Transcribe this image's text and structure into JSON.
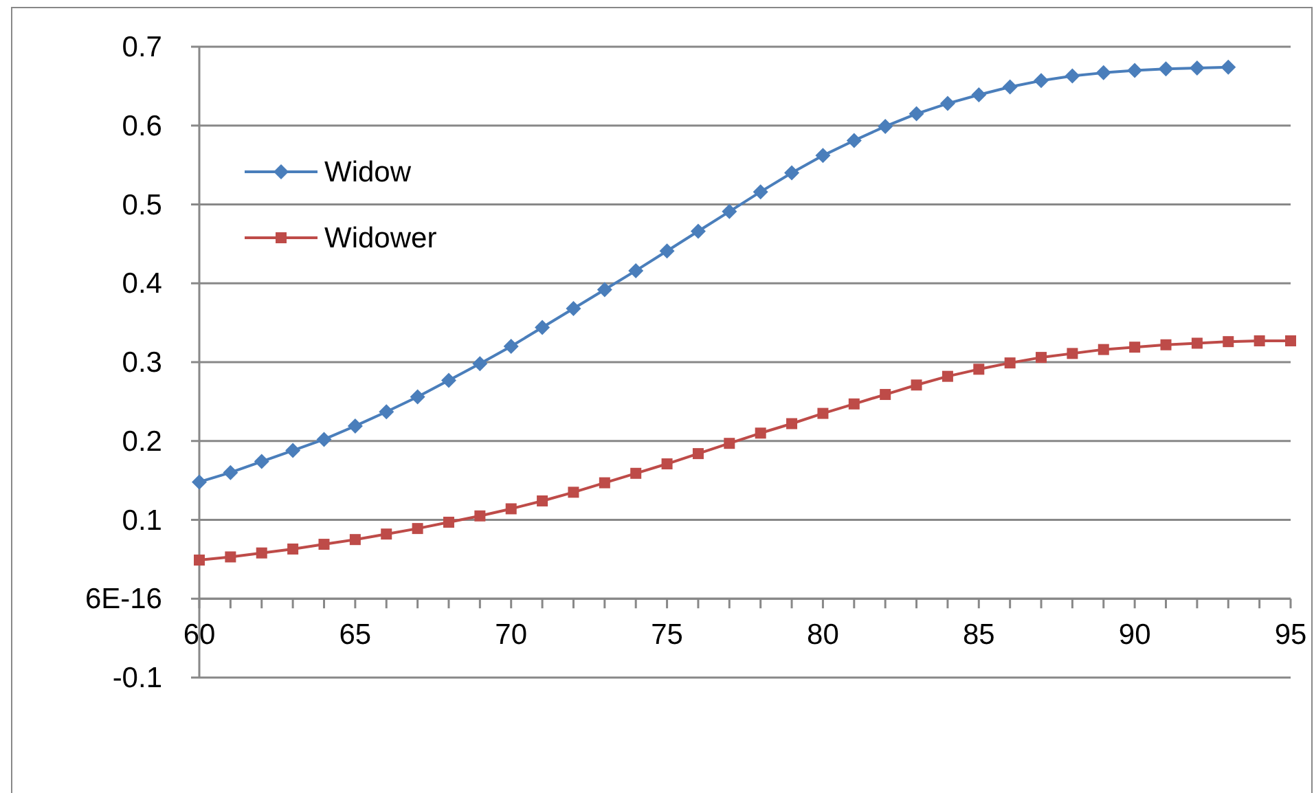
{
  "chart_data": {
    "type": "line",
    "x": [
      60,
      61,
      62,
      63,
      64,
      65,
      66,
      67,
      68,
      69,
      70,
      71,
      72,
      73,
      74,
      75,
      76,
      77,
      78,
      79,
      80,
      81,
      82,
      83,
      84,
      85,
      86,
      87,
      88,
      89,
      90,
      91,
      92,
      93,
      94,
      95
    ],
    "series": [
      {
        "name": "Widow",
        "color": "#4a7ebb",
        "marker": "diamond",
        "x": [
          60,
          61,
          62,
          63,
          64,
          65,
          66,
          67,
          68,
          69,
          70,
          71,
          72,
          73,
          74,
          75,
          76,
          77,
          78,
          79,
          80,
          81,
          82,
          83,
          84,
          85,
          86,
          87,
          88,
          89,
          90,
          91,
          92,
          93
        ],
        "values": [
          0.148,
          0.16,
          0.174,
          0.188,
          0.202,
          0.219,
          0.237,
          0.256,
          0.277,
          0.298,
          0.32,
          0.344,
          0.368,
          0.392,
          0.416,
          0.441,
          0.466,
          0.491,
          0.516,
          0.54,
          0.562,
          0.581,
          0.599,
          0.615,
          0.628,
          0.639,
          0.649,
          0.657,
          0.663,
          0.667,
          0.67,
          0.672,
          0.673,
          0.674
        ]
      },
      {
        "name": "Widower",
        "color": "#be4b48",
        "marker": "square",
        "values": [
          0.049,
          0.053,
          0.058,
          0.063,
          0.069,
          0.075,
          0.082,
          0.089,
          0.097,
          0.105,
          0.114,
          0.124,
          0.135,
          0.147,
          0.159,
          0.171,
          0.184,
          0.197,
          0.21,
          0.222,
          0.235,
          0.247,
          0.259,
          0.271,
          0.282,
          0.291,
          0.299,
          0.306,
          0.311,
          0.316,
          0.319,
          0.322,
          0.324,
          0.326,
          0.327,
          0.327
        ]
      }
    ],
    "xlim": [
      60,
      95
    ],
    "xticks": [
      60,
      {
        "value": 61,
        "label": null
      },
      {
        "value": 62,
        "label": null
      },
      {
        "value": 63,
        "label": null
      },
      {
        "value": 64,
        "label": null
      },
      65,
      {
        "value": 66,
        "label": null
      },
      {
        "value": 67,
        "label": null
      },
      {
        "value": 68,
        "label": null
      },
      {
        "value": 69,
        "label": null
      },
      70,
      {
        "value": 71,
        "label": null
      },
      {
        "value": 72,
        "label": null
      },
      {
        "value": 73,
        "label": null
      },
      {
        "value": 74,
        "label": null
      },
      75,
      {
        "value": 76,
        "label": null
      },
      {
        "value": 77,
        "label": null
      },
      {
        "value": 78,
        "label": null
      },
      {
        "value": 79,
        "label": null
      },
      80,
      {
        "value": 81,
        "label": null
      },
      {
        "value": 82,
        "label": null
      },
      {
        "value": 83,
        "label": null
      },
      {
        "value": 84,
        "label": null
      },
      85,
      {
        "value": 86,
        "label": null
      },
      {
        "value": 87,
        "label": null
      },
      {
        "value": 88,
        "label": null
      },
      {
        "value": 89,
        "label": null
      },
      90,
      {
        "value": 91,
        "label": null
      },
      {
        "value": 92,
        "label": null
      },
      {
        "value": 93,
        "label": null
      },
      {
        "value": 94,
        "label": null
      },
      95
    ],
    "ylim": [
      -0.1,
      0.7
    ],
    "yticks": [
      -0.1,
      {
        "value": 6e-16,
        "label": "6E-16"
      },
      0.1,
      0.2,
      0.3,
      0.4,
      0.5,
      0.6,
      0.7
    ],
    "grid": "y",
    "legend": "top left",
    "line_style": "solid"
  }
}
